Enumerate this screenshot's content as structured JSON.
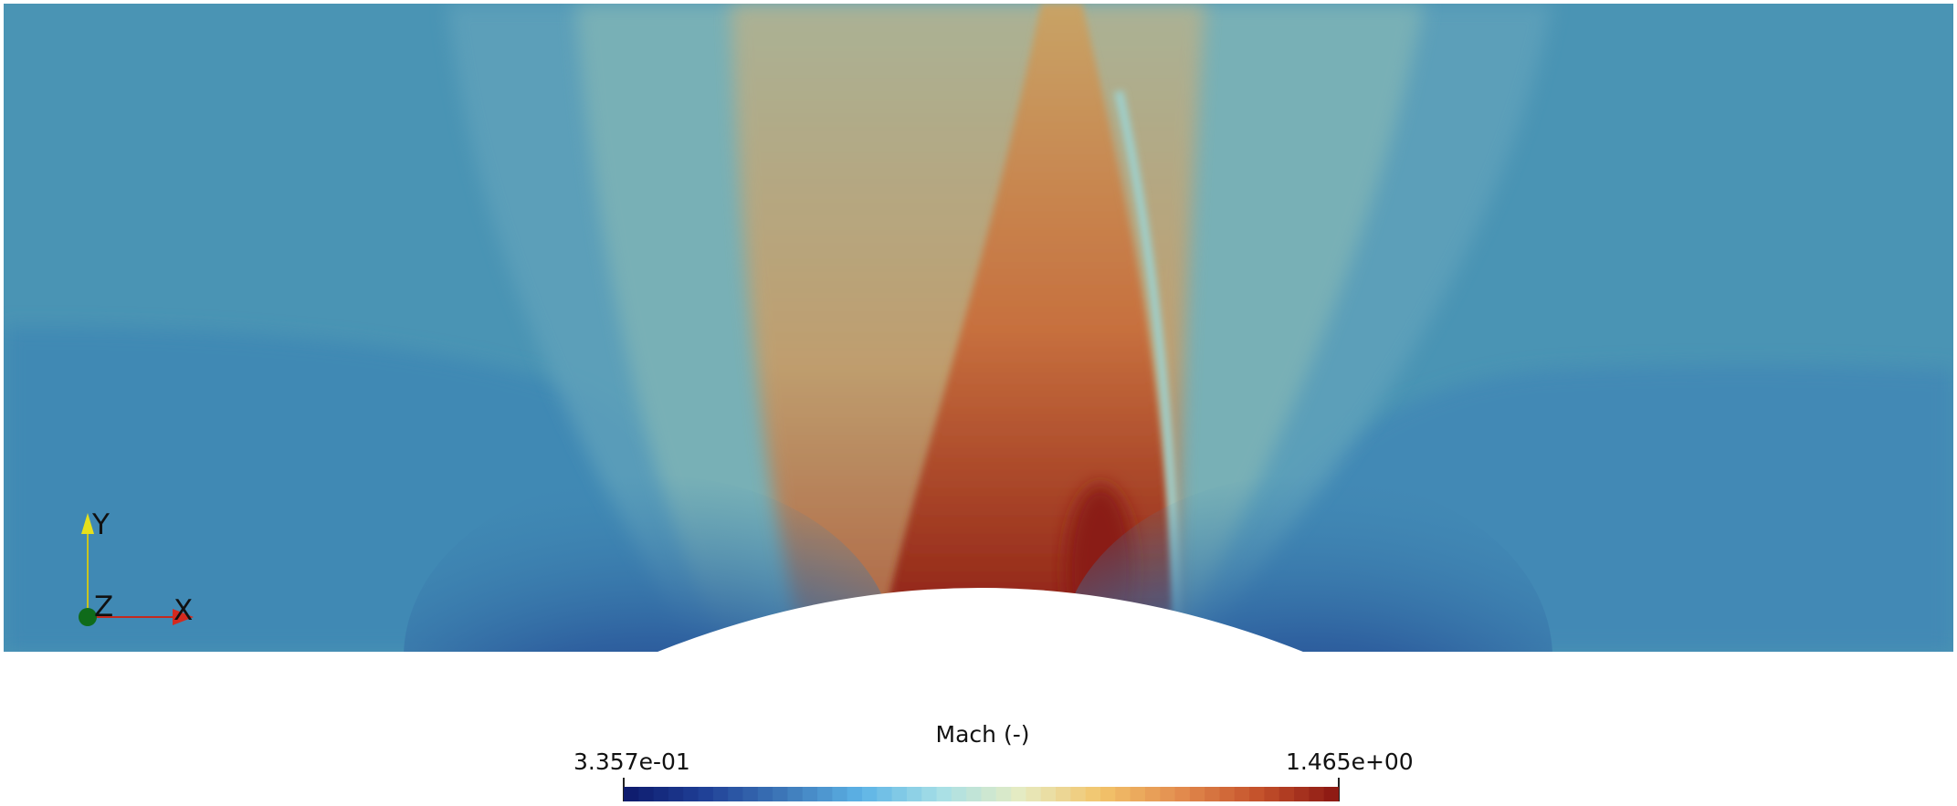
{
  "visualization": {
    "type": "contour-field",
    "variable": "Mach",
    "scalar_bar": {
      "title": "Mach (-)",
      "min_label": "3.357e-01",
      "max_label": "1.465e+00",
      "min": 0.3357,
      "max": 1.465,
      "n_colors": 48,
      "colormap": [
        "#0d1a6b",
        "#1f3f96",
        "#3d77b8",
        "#5db4e6",
        "#a8e0e6",
        "#e6ebc2",
        "#f2c46b",
        "#e38c4e",
        "#c4512b",
        "#8a1512"
      ]
    },
    "background_level": 0.55,
    "field_colors": {
      "background": "#4a94b4",
      "upstream_lower": "#3f86b2",
      "stagnation": "#0e1a5e",
      "sonic_line": "#9fd0cc",
      "supersonic_peak": "#8a1a12"
    },
    "bump_color": "#ffffff"
  },
  "orientation_axes": {
    "x_label": "X",
    "y_label": "Y",
    "z_label": "Z",
    "x_color": "#d42a1f",
    "y_color": "#e6e01c",
    "z_color": "#0f6b1a"
  }
}
